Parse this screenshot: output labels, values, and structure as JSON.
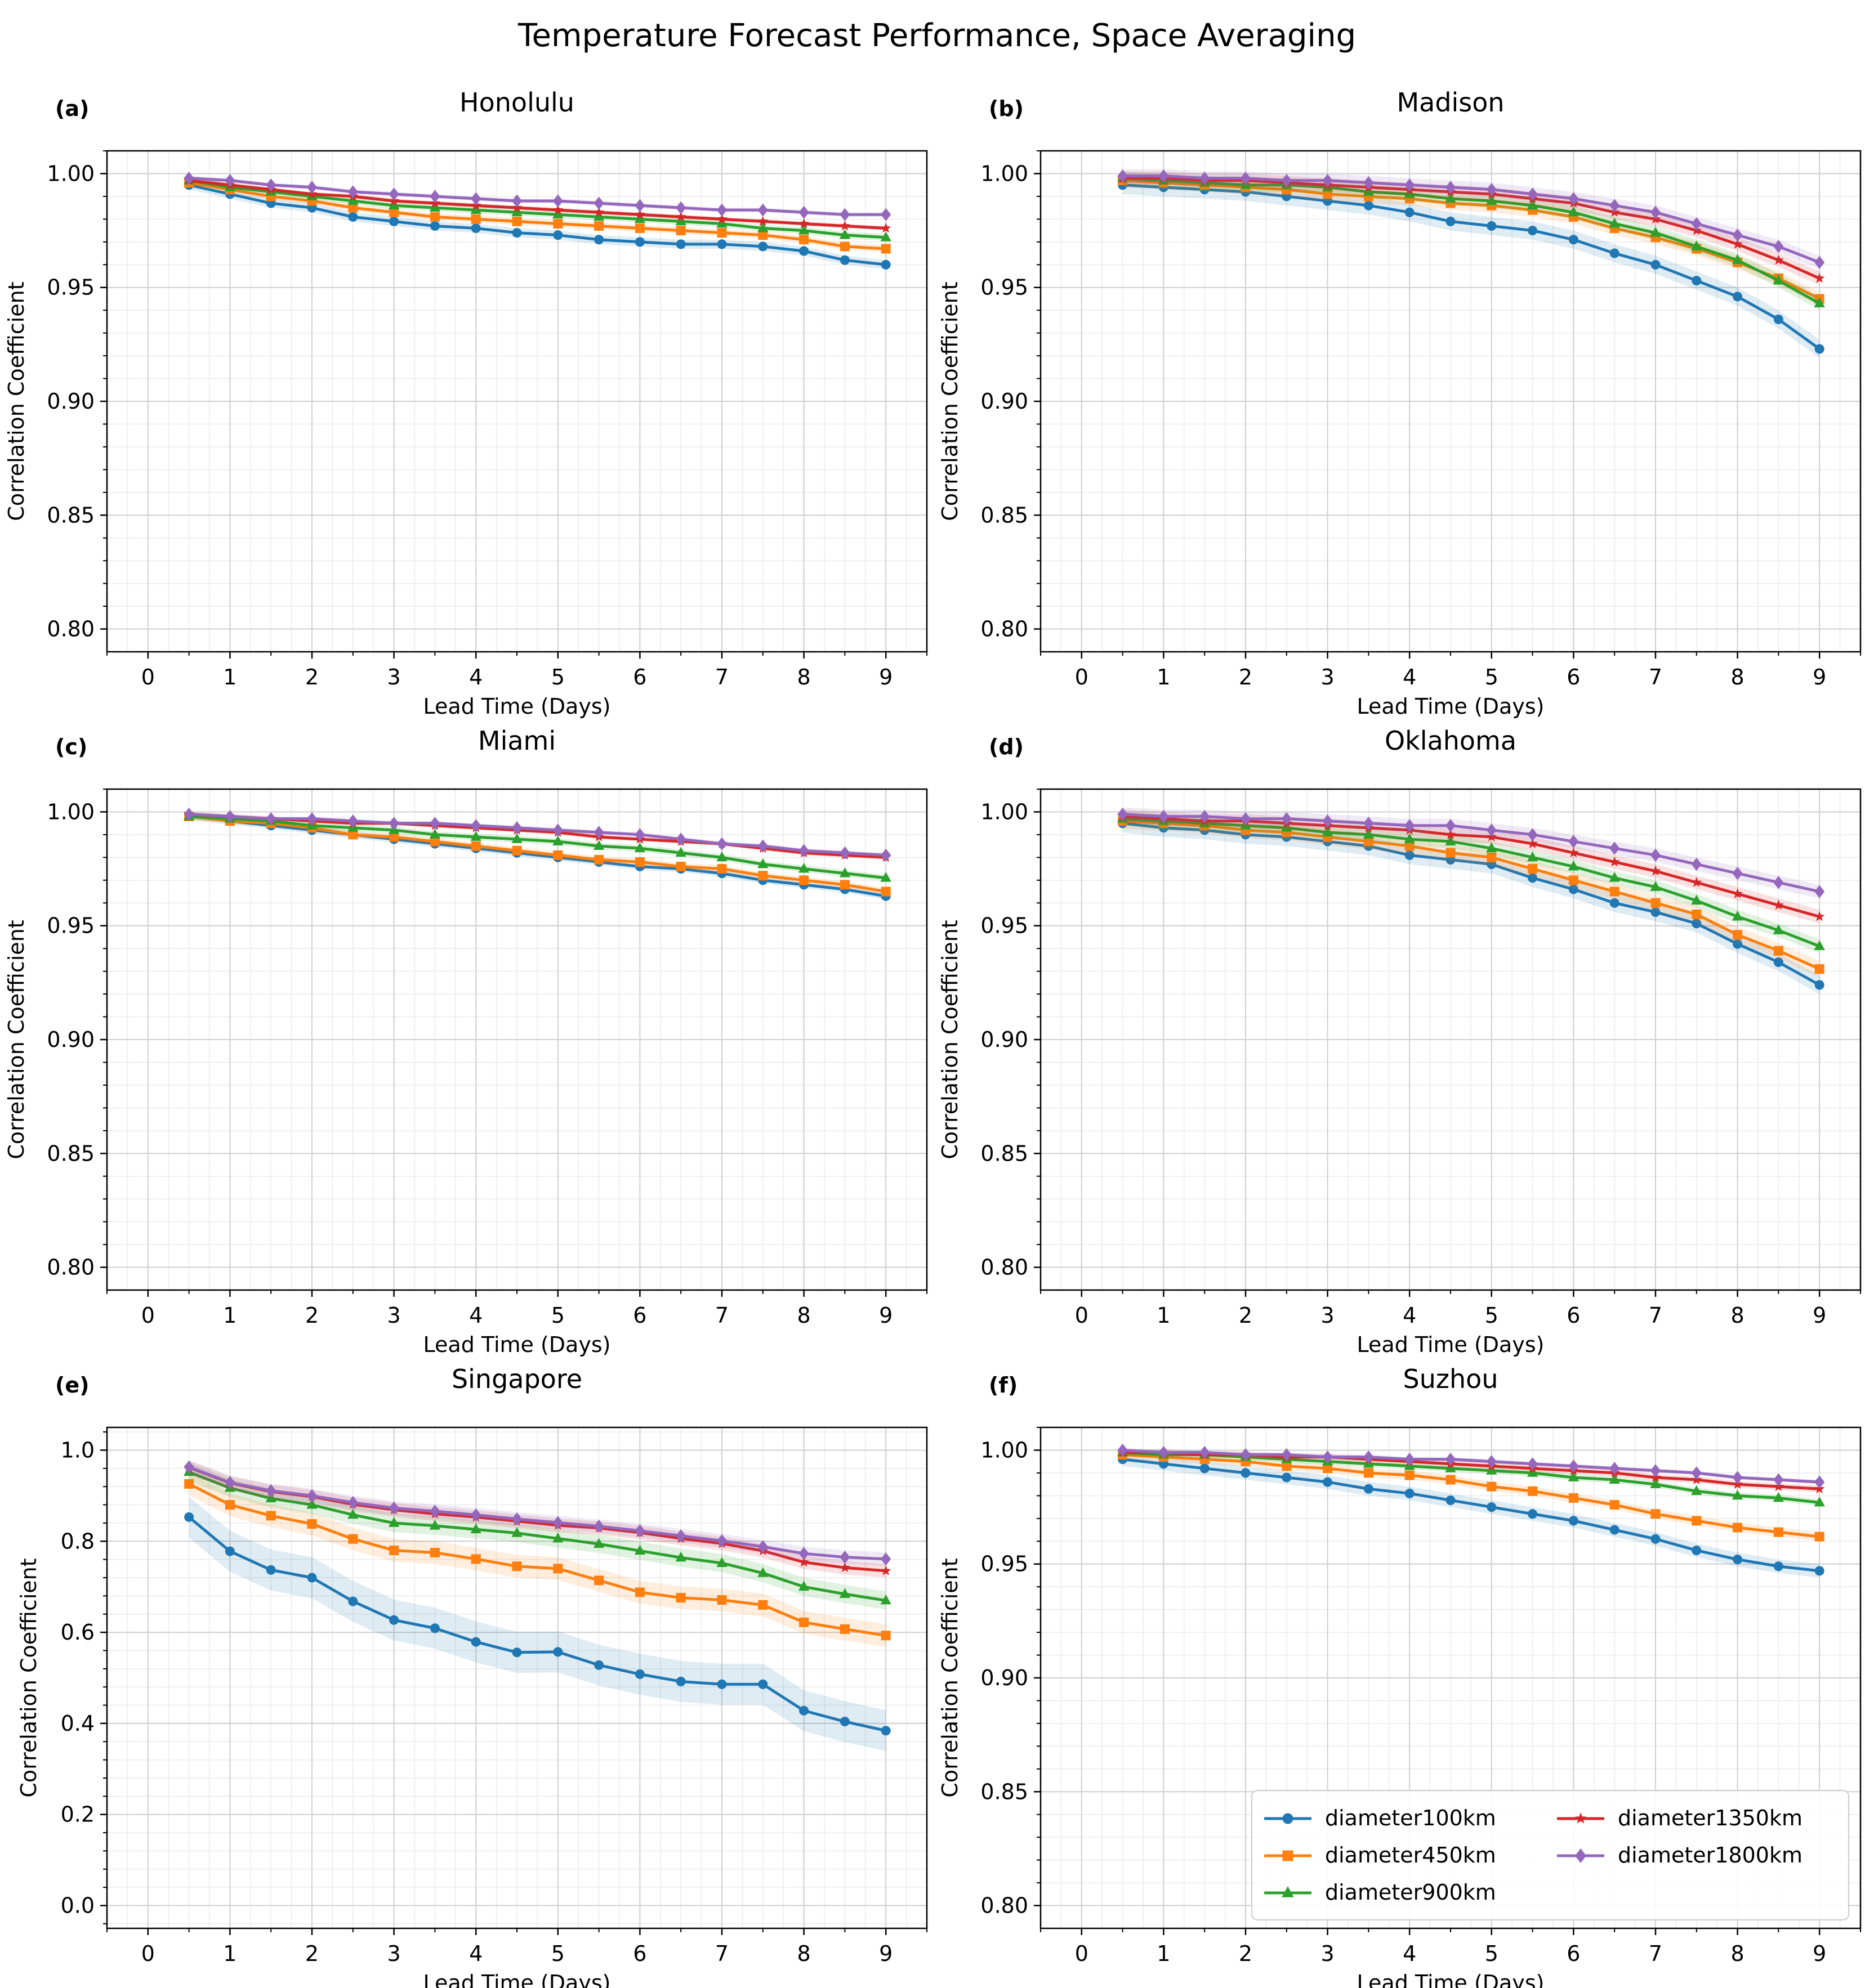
{
  "chart_data": {
    "title": "Temperature Forecast Performance, Space Averaging",
    "type": "line",
    "x": [
      0.5,
      1,
      1.5,
      2,
      2.5,
      3,
      3.5,
      4,
      4.5,
      5,
      5.5,
      6,
      6.5,
      7,
      7.5,
      8,
      8.5,
      9
    ],
    "xticks": [
      "0",
      "1",
      "2",
      "3",
      "4",
      "5",
      "6",
      "7",
      "8",
      "9"
    ],
    "xlim": [
      -0.5,
      9.5
    ],
    "xlabel": "Lead Time (Days)",
    "ylabel": "Correlation Coefficient",
    "grid": true,
    "colors": {
      "diameter100km": "#1f77b4",
      "diameter450km": "#ff7f0e",
      "diameter900km": "#2ca02c",
      "diameter1350km": "#d62728",
      "diameter1800km": "#9467bd"
    },
    "markers": {
      "diameter100km": "circle",
      "diameter450km": "square",
      "diameter900km": "triangle",
      "diameter1350km": "star",
      "diameter1800km": "diamond"
    },
    "legend": {
      "location": "lower-right of panel (f)",
      "columns": [
        [
          "diameter100km",
          "diameter450km",
          "diameter900km"
        ],
        [
          "diameter1350km",
          "diameter1800km"
        ]
      ]
    },
    "panels": [
      {
        "letter": "(a)",
        "title": "Honolulu",
        "ylim": [
          0.79,
          1.01
        ],
        "yticks": [
          "0.80",
          "0.85",
          "0.90",
          "0.95",
          "1.00"
        ],
        "ytick_values": [
          0.8,
          0.85,
          0.9,
          0.95,
          1.0
        ],
        "series": [
          {
            "name": "diameter100km",
            "values": [
              0.995,
              0.991,
              0.987,
              0.985,
              0.981,
              0.979,
              0.977,
              0.976,
              0.974,
              0.973,
              0.971,
              0.97,
              0.969,
              0.969,
              0.968,
              0.966,
              0.962,
              0.96
            ],
            "band": 0.002
          },
          {
            "name": "diameter450km",
            "values": [
              0.996,
              0.993,
              0.99,
              0.988,
              0.985,
              0.983,
              0.981,
              0.98,
              0.979,
              0.978,
              0.977,
              0.976,
              0.975,
              0.974,
              0.973,
              0.971,
              0.968,
              0.967
            ],
            "band": 0.0015
          },
          {
            "name": "diameter900km",
            "values": [
              0.997,
              0.994,
              0.992,
              0.99,
              0.988,
              0.986,
              0.985,
              0.984,
              0.983,
              0.982,
              0.981,
              0.98,
              0.979,
              0.978,
              0.976,
              0.975,
              0.973,
              0.972
            ],
            "band": 0.0015
          },
          {
            "name": "diameter1350km",
            "values": [
              0.997,
              0.995,
              0.993,
              0.991,
              0.99,
              0.988,
              0.987,
              0.986,
              0.985,
              0.984,
              0.983,
              0.982,
              0.981,
              0.98,
              0.979,
              0.978,
              0.977,
              0.976
            ],
            "band": 0.001
          },
          {
            "name": "diameter1800km",
            "values": [
              0.998,
              0.997,
              0.995,
              0.994,
              0.992,
              0.991,
              0.99,
              0.989,
              0.988,
              0.988,
              0.987,
              0.986,
              0.985,
              0.984,
              0.984,
              0.983,
              0.982,
              0.982
            ],
            "band": 0.001
          }
        ]
      },
      {
        "letter": "(b)",
        "title": "Madison",
        "ylim": [
          0.79,
          1.01
        ],
        "yticks": [
          "0.80",
          "0.85",
          "0.90",
          "0.95",
          "1.00"
        ],
        "ytick_values": [
          0.8,
          0.85,
          0.9,
          0.95,
          1.0
        ],
        "series": [
          {
            "name": "diameter100km",
            "values": [
              0.995,
              0.994,
              0.993,
              0.992,
              0.99,
              0.988,
              0.986,
              0.983,
              0.979,
              0.977,
              0.975,
              0.971,
              0.965,
              0.96,
              0.953,
              0.946,
              0.936,
              0.923
            ],
            "band": 0.004
          },
          {
            "name": "diameter450km",
            "values": [
              0.997,
              0.996,
              0.995,
              0.994,
              0.993,
              0.991,
              0.99,
              0.989,
              0.987,
              0.986,
              0.984,
              0.981,
              0.976,
              0.972,
              0.967,
              0.961,
              0.954,
              0.945
            ],
            "band": 0.003
          },
          {
            "name": "diameter900km",
            "values": [
              0.998,
              0.997,
              0.996,
              0.995,
              0.995,
              0.994,
              0.992,
              0.991,
              0.989,
              0.988,
              0.986,
              0.983,
              0.978,
              0.974,
              0.968,
              0.962,
              0.953,
              0.943
            ],
            "band": 0.003
          },
          {
            "name": "diameter1350km",
            "values": [
              0.998,
              0.998,
              0.997,
              0.997,
              0.996,
              0.995,
              0.994,
              0.993,
              0.992,
              0.991,
              0.989,
              0.987,
              0.983,
              0.98,
              0.975,
              0.969,
              0.962,
              0.954
            ],
            "band": 0.003
          },
          {
            "name": "diameter1800km",
            "values": [
              0.999,
              0.999,
              0.998,
              0.998,
              0.997,
              0.997,
              0.996,
              0.995,
              0.994,
              0.993,
              0.991,
              0.989,
              0.986,
              0.983,
              0.978,
              0.973,
              0.968,
              0.961
            ],
            "band": 0.003
          }
        ]
      },
      {
        "letter": "(c)",
        "title": "Miami",
        "ylim": [
          0.79,
          1.01
        ],
        "yticks": [
          "0.80",
          "0.85",
          "0.90",
          "0.95",
          "1.00"
        ],
        "ytick_values": [
          0.8,
          0.85,
          0.9,
          0.95,
          1.0
        ],
        "series": [
          {
            "name": "diameter100km",
            "values": [
              0.998,
              0.996,
              0.994,
              0.992,
              0.99,
              0.988,
              0.986,
              0.984,
              0.982,
              0.98,
              0.978,
              0.976,
              0.975,
              0.973,
              0.97,
              0.968,
              0.966,
              0.963
            ],
            "band": 0.0015
          },
          {
            "name": "diameter450km",
            "values": [
              0.998,
              0.996,
              0.995,
              0.993,
              0.99,
              0.989,
              0.987,
              0.985,
              0.983,
              0.981,
              0.979,
              0.978,
              0.976,
              0.975,
              0.972,
              0.97,
              0.968,
              0.965
            ],
            "band": 0.0015
          },
          {
            "name": "diameter900km",
            "values": [
              0.998,
              0.997,
              0.996,
              0.994,
              0.993,
              0.992,
              0.99,
              0.989,
              0.988,
              0.987,
              0.985,
              0.984,
              0.982,
              0.98,
              0.977,
              0.975,
              0.973,
              0.971
            ],
            "band": 0.0015
          },
          {
            "name": "diameter1350km",
            "values": [
              0.999,
              0.998,
              0.997,
              0.996,
              0.995,
              0.995,
              0.994,
              0.993,
              0.992,
              0.991,
              0.989,
              0.988,
              0.987,
              0.986,
              0.984,
              0.982,
              0.981,
              0.98
            ],
            "band": 0.001
          },
          {
            "name": "diameter1800km",
            "values": [
              0.999,
              0.998,
              0.997,
              0.997,
              0.996,
              0.995,
              0.995,
              0.994,
              0.993,
              0.992,
              0.991,
              0.99,
              0.988,
              0.986,
              0.985,
              0.983,
              0.982,
              0.981
            ],
            "band": 0.001
          }
        ]
      },
      {
        "letter": "(d)",
        "title": "Oklahoma",
        "ylim": [
          0.79,
          1.01
        ],
        "yticks": [
          "0.80",
          "0.85",
          "0.90",
          "0.95",
          "1.00"
        ],
        "ytick_values": [
          0.8,
          0.85,
          0.9,
          0.95,
          1.0
        ],
        "series": [
          {
            "name": "diameter100km",
            "values": [
              0.995,
              0.993,
              0.992,
              0.99,
              0.989,
              0.987,
              0.985,
              0.981,
              0.979,
              0.977,
              0.971,
              0.966,
              0.96,
              0.956,
              0.951,
              0.942,
              0.934,
              0.924
            ],
            "band": 0.004
          },
          {
            "name": "diameter450km",
            "values": [
              0.996,
              0.995,
              0.994,
              0.992,
              0.991,
              0.989,
              0.987,
              0.985,
              0.982,
              0.98,
              0.975,
              0.97,
              0.965,
              0.96,
              0.955,
              0.946,
              0.939,
              0.931
            ],
            "band": 0.0035
          },
          {
            "name": "diameter900km",
            "values": [
              0.997,
              0.996,
              0.995,
              0.994,
              0.993,
              0.991,
              0.99,
              0.988,
              0.987,
              0.984,
              0.98,
              0.976,
              0.971,
              0.967,
              0.961,
              0.954,
              0.948,
              0.941
            ],
            "band": 0.003
          },
          {
            "name": "diameter1350km",
            "values": [
              0.998,
              0.997,
              0.996,
              0.996,
              0.995,
              0.994,
              0.993,
              0.992,
              0.99,
              0.989,
              0.986,
              0.982,
              0.978,
              0.974,
              0.969,
              0.964,
              0.959,
              0.954
            ],
            "band": 0.003
          },
          {
            "name": "diameter1800km",
            "values": [
              0.999,
              0.998,
              0.998,
              0.997,
              0.997,
              0.996,
              0.995,
              0.994,
              0.994,
              0.992,
              0.99,
              0.987,
              0.984,
              0.981,
              0.977,
              0.973,
              0.969,
              0.965
            ],
            "band": 0.003
          }
        ]
      },
      {
        "letter": "(e)",
        "title": "Singapore",
        "ylim": [
          -0.05,
          1.05
        ],
        "yticks": [
          "0.0",
          "0.2",
          "0.4",
          "0.6",
          "0.8",
          "1.0"
        ],
        "ytick_values": [
          0.0,
          0.2,
          0.4,
          0.6,
          0.8,
          1.0
        ],
        "series": [
          {
            "name": "diameter100km",
            "values": [
              0.853,
              0.778,
              0.737,
              0.72,
              0.668,
              0.627,
              0.609,
              0.579,
              0.556,
              0.557,
              0.528,
              0.508,
              0.492,
              0.486,
              0.486,
              0.428,
              0.404,
              0.384
            ],
            "band": 0.045
          },
          {
            "name": "diameter450km",
            "values": [
              0.926,
              0.88,
              0.856,
              0.838,
              0.805,
              0.78,
              0.775,
              0.761,
              0.745,
              0.74,
              0.714,
              0.688,
              0.676,
              0.671,
              0.66,
              0.622,
              0.607,
              0.593
            ],
            "band": 0.025
          },
          {
            "name": "diameter900km",
            "values": [
              0.952,
              0.917,
              0.894,
              0.88,
              0.858,
              0.84,
              0.834,
              0.826,
              0.818,
              0.806,
              0.794,
              0.779,
              0.764,
              0.752,
              0.73,
              0.7,
              0.684,
              0.67
            ],
            "band": 0.02
          },
          {
            "name": "diameter1350km",
            "values": [
              0.962,
              0.928,
              0.909,
              0.898,
              0.881,
              0.869,
              0.86,
              0.853,
              0.844,
              0.835,
              0.829,
              0.819,
              0.806,
              0.795,
              0.779,
              0.754,
              0.742,
              0.735
            ],
            "band": 0.015
          },
          {
            "name": "diameter1800km",
            "values": [
              0.963,
              0.929,
              0.911,
              0.9,
              0.885,
              0.873,
              0.866,
              0.858,
              0.849,
              0.841,
              0.833,
              0.823,
              0.812,
              0.801,
              0.788,
              0.773,
              0.765,
              0.761
            ],
            "band": 0.015
          }
        ]
      },
      {
        "letter": "(f)",
        "title": "Suzhou",
        "ylim": [
          0.79,
          1.01
        ],
        "yticks": [
          "0.80",
          "0.85",
          "0.90",
          "0.95",
          "1.00"
        ],
        "ytick_values": [
          0.8,
          0.85,
          0.9,
          0.95,
          1.0
        ],
        "series": [
          {
            "name": "diameter100km",
            "values": [
              0.996,
              0.994,
              0.992,
              0.99,
              0.988,
              0.986,
              0.983,
              0.981,
              0.978,
              0.975,
              0.972,
              0.969,
              0.965,
              0.961,
              0.956,
              0.952,
              0.949,
              0.947
            ],
            "band": 0.003
          },
          {
            "name": "diameter450km",
            "values": [
              0.998,
              0.997,
              0.996,
              0.995,
              0.993,
              0.992,
              0.99,
              0.989,
              0.987,
              0.984,
              0.982,
              0.979,
              0.976,
              0.972,
              0.969,
              0.966,
              0.964,
              0.962
            ],
            "band": 0.002
          },
          {
            "name": "diameter900km",
            "values": [
              0.999,
              0.998,
              0.998,
              0.997,
              0.996,
              0.995,
              0.994,
              0.993,
              0.992,
              0.991,
              0.99,
              0.988,
              0.987,
              0.985,
              0.982,
              0.98,
              0.979,
              0.977
            ],
            "band": 0.0015
          },
          {
            "name": "diameter1350km",
            "values": [
              0.999,
              0.999,
              0.998,
              0.998,
              0.997,
              0.997,
              0.996,
              0.995,
              0.994,
              0.993,
              0.992,
              0.991,
              0.99,
              0.988,
              0.987,
              0.985,
              0.984,
              0.983
            ],
            "band": 0.0015
          },
          {
            "name": "diameter1800km",
            "values": [
              1.0,
              0.999,
              0.999,
              0.998,
              0.998,
              0.997,
              0.997,
              0.996,
              0.996,
              0.995,
              0.994,
              0.993,
              0.992,
              0.991,
              0.99,
              0.988,
              0.987,
              0.986
            ],
            "band": 0.001
          }
        ]
      }
    ]
  }
}
